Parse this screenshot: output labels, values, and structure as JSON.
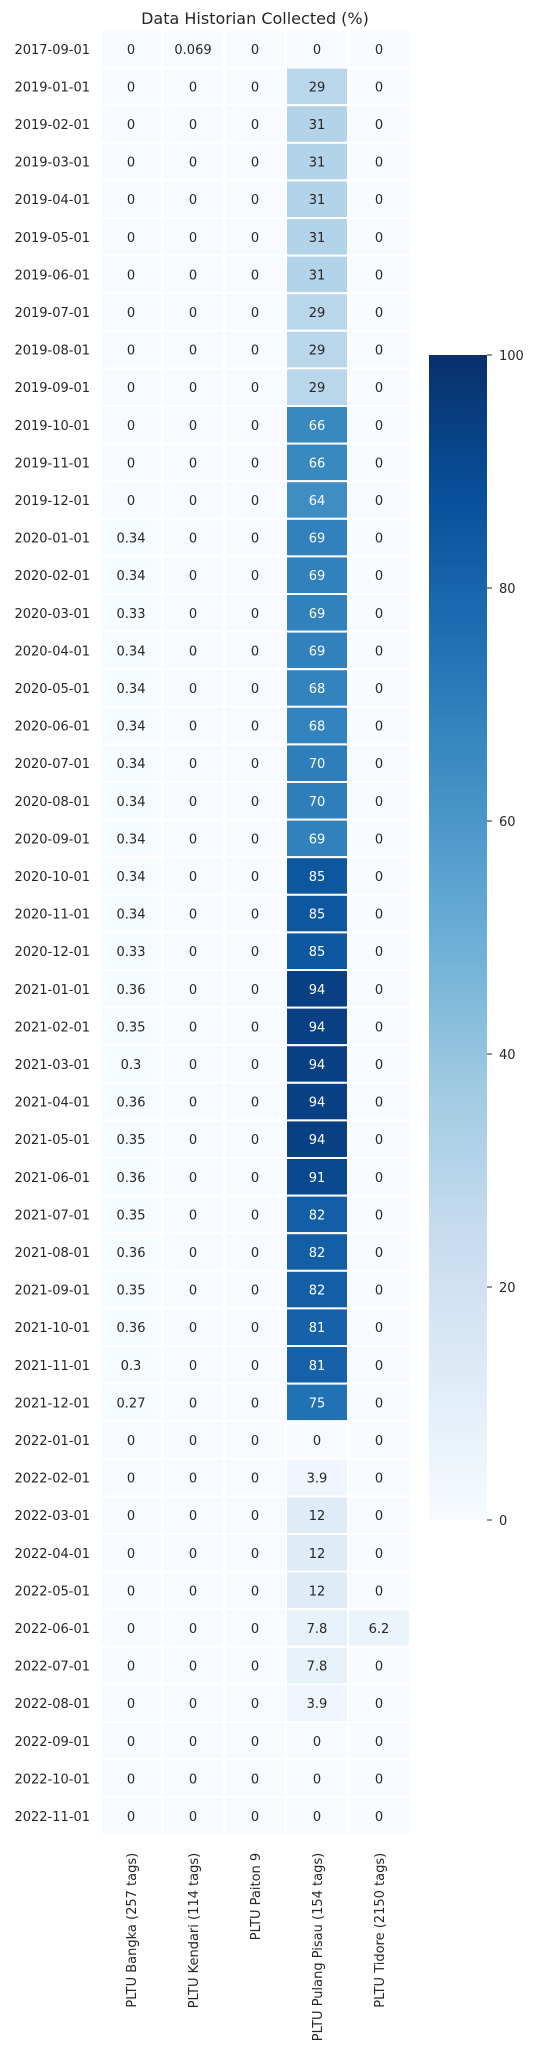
{
  "chart_data": {
    "type": "heatmap",
    "title": "Data Historian Collected (%)",
    "columns": [
      "PLTU Bangka (257 tags)",
      "PLTU Kendari (114 tags)",
      "PLTU Paiton 9",
      "PLTU Pulang Pisau (154 tags)",
      "PLTU Tidore (2150 tags)"
    ],
    "rows": [
      "2017-09-01",
      "2019-01-01",
      "2019-02-01",
      "2019-03-01",
      "2019-04-01",
      "2019-05-01",
      "2019-06-01",
      "2019-07-01",
      "2019-08-01",
      "2019-09-01",
      "2019-10-01",
      "2019-11-01",
      "2019-12-01",
      "2020-01-01",
      "2020-02-01",
      "2020-03-01",
      "2020-04-01",
      "2020-05-01",
      "2020-06-01",
      "2020-07-01",
      "2020-08-01",
      "2020-09-01",
      "2020-10-01",
      "2020-11-01",
      "2020-12-01",
      "2021-01-01",
      "2021-02-01",
      "2021-03-01",
      "2021-04-01",
      "2021-05-01",
      "2021-06-01",
      "2021-07-01",
      "2021-08-01",
      "2021-09-01",
      "2021-10-01",
      "2021-11-01",
      "2021-12-01",
      "2022-01-01",
      "2022-02-01",
      "2022-03-01",
      "2022-04-01",
      "2022-05-01",
      "2022-06-01",
      "2022-07-01",
      "2022-08-01",
      "2022-09-01",
      "2022-10-01",
      "2022-11-01"
    ],
    "values": [
      [
        0,
        0.069,
        0,
        0,
        0
      ],
      [
        0,
        0,
        0,
        29,
        0
      ],
      [
        0,
        0,
        0,
        31,
        0
      ],
      [
        0,
        0,
        0,
        31,
        0
      ],
      [
        0,
        0,
        0,
        31,
        0
      ],
      [
        0,
        0,
        0,
        31,
        0
      ],
      [
        0,
        0,
        0,
        31,
        0
      ],
      [
        0,
        0,
        0,
        29,
        0
      ],
      [
        0,
        0,
        0,
        29,
        0
      ],
      [
        0,
        0,
        0,
        29,
        0
      ],
      [
        0,
        0,
        0,
        66,
        0
      ],
      [
        0,
        0,
        0,
        66,
        0
      ],
      [
        0,
        0,
        0,
        64,
        0
      ],
      [
        0.34,
        0,
        0,
        69,
        0
      ],
      [
        0.34,
        0,
        0,
        69,
        0
      ],
      [
        0.33,
        0,
        0,
        69,
        0
      ],
      [
        0.34,
        0,
        0,
        69,
        0
      ],
      [
        0.34,
        0,
        0,
        68,
        0
      ],
      [
        0.34,
        0,
        0,
        68,
        0
      ],
      [
        0.34,
        0,
        0,
        70,
        0
      ],
      [
        0.34,
        0,
        0,
        70,
        0
      ],
      [
        0.34,
        0,
        0,
        69,
        0
      ],
      [
        0.34,
        0,
        0,
        85,
        0
      ],
      [
        0.34,
        0,
        0,
        85,
        0
      ],
      [
        0.33,
        0,
        0,
        85,
        0
      ],
      [
        0.36,
        0,
        0,
        94,
        0
      ],
      [
        0.35,
        0,
        0,
        94,
        0
      ],
      [
        0.3,
        0,
        0,
        94,
        0
      ],
      [
        0.36,
        0,
        0,
        94,
        0
      ],
      [
        0.35,
        0,
        0,
        94,
        0
      ],
      [
        0.36,
        0,
        0,
        91,
        0
      ],
      [
        0.35,
        0,
        0,
        82,
        0
      ],
      [
        0.36,
        0,
        0,
        82,
        0
      ],
      [
        0.35,
        0,
        0,
        82,
        0
      ],
      [
        0.36,
        0,
        0,
        81,
        0
      ],
      [
        0.3,
        0,
        0,
        81,
        0
      ],
      [
        0.27,
        0,
        0,
        75,
        0
      ],
      [
        0,
        0,
        0,
        0,
        0
      ],
      [
        0,
        0,
        0,
        3.9,
        0
      ],
      [
        0,
        0,
        0,
        12,
        0
      ],
      [
        0,
        0,
        0,
        12,
        0
      ],
      [
        0,
        0,
        0,
        12,
        0
      ],
      [
        0,
        0,
        0,
        7.8,
        6.2
      ],
      [
        0,
        0,
        0,
        7.8,
        0
      ],
      [
        0,
        0,
        0,
        3.9,
        0
      ],
      [
        0,
        0,
        0,
        0,
        0
      ],
      [
        0,
        0,
        0,
        0,
        0
      ],
      [
        0,
        0,
        0,
        0,
        0
      ]
    ],
    "vmin": 0,
    "vmax": 100,
    "colormap": "Blues",
    "colorbar_ticks": [
      0,
      20,
      40,
      60,
      80,
      100
    ],
    "annotations": true
  }
}
